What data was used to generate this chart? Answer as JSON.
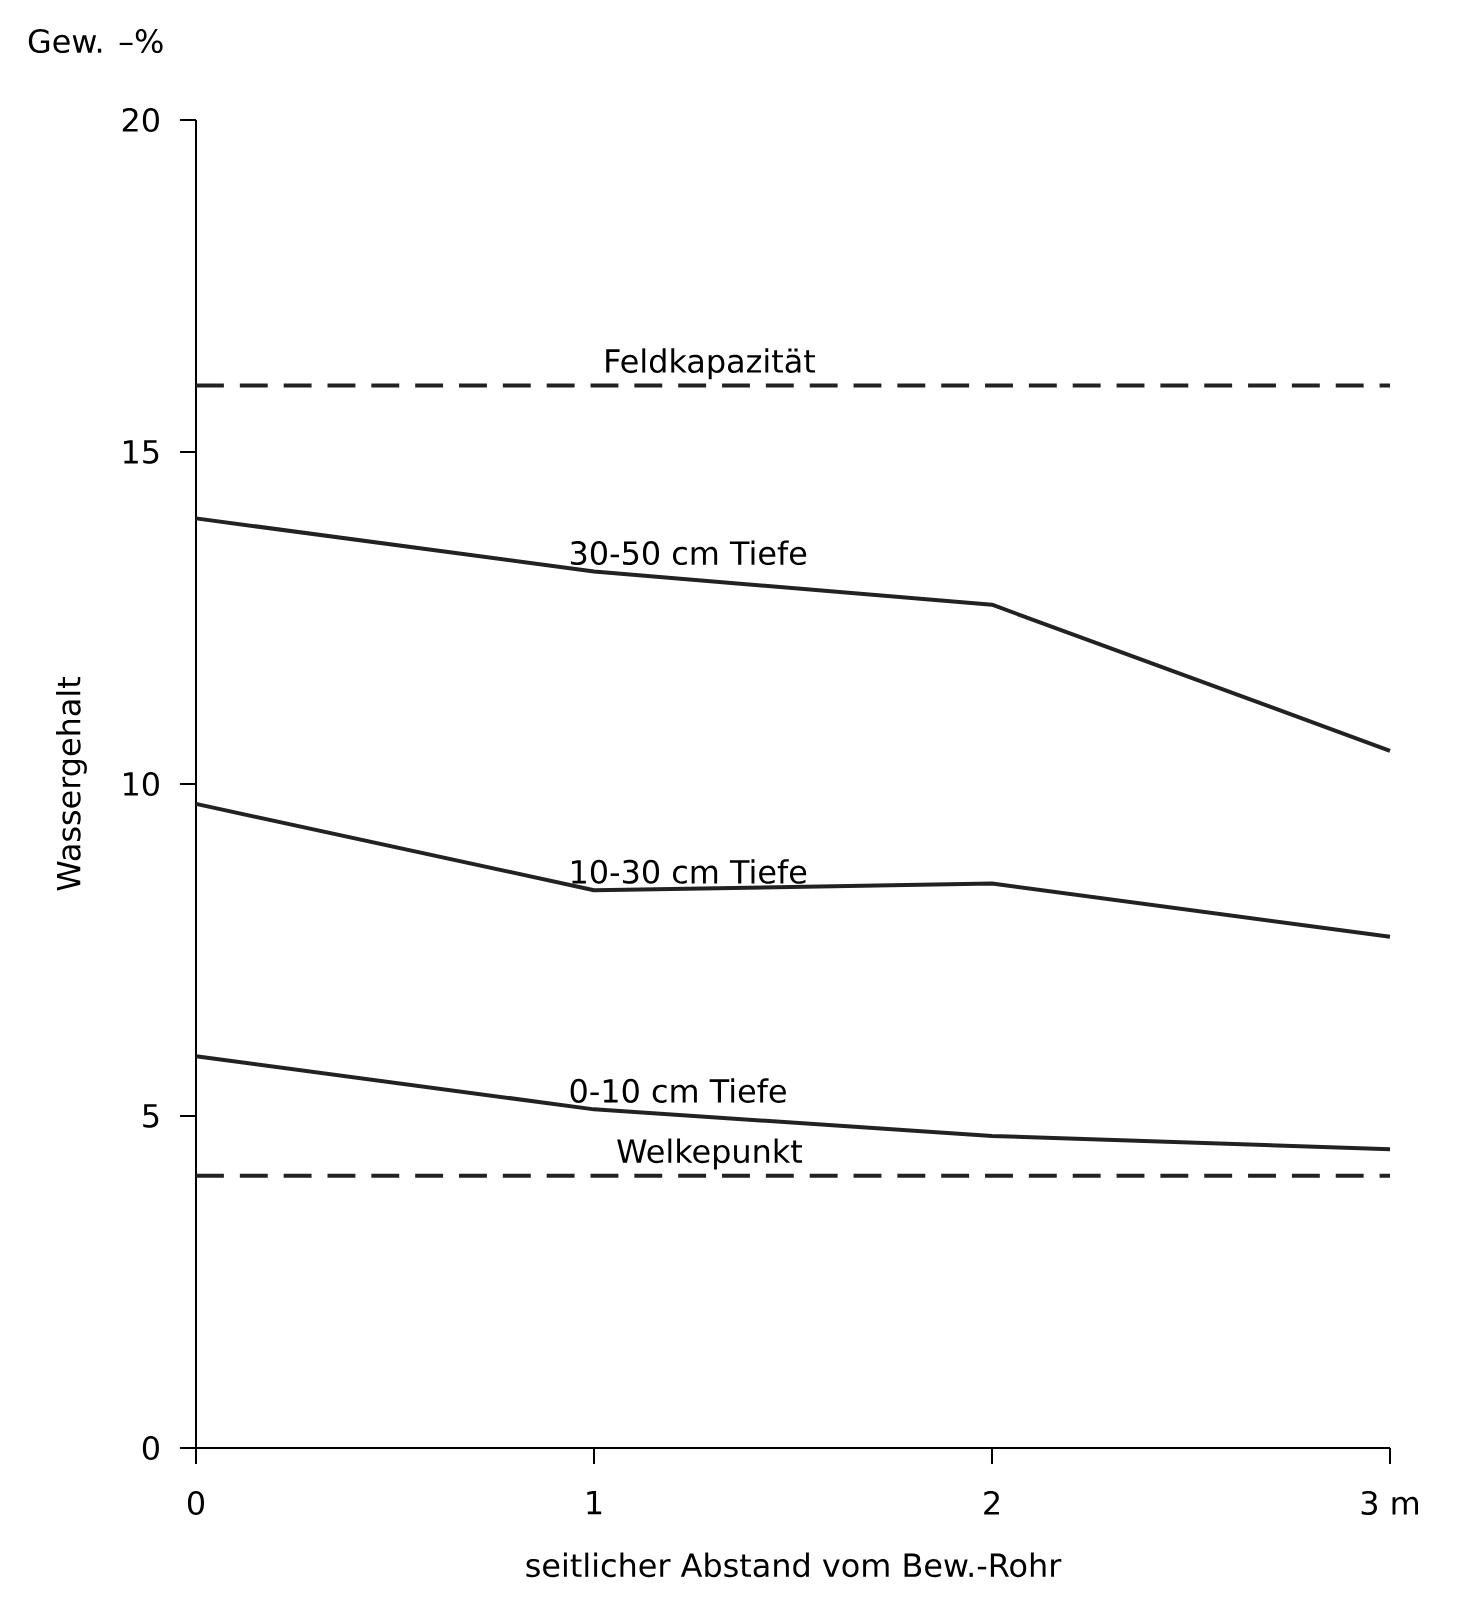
{
  "chart_data": {
    "type": "line",
    "xlabel": "seitlicher Abstand vom Bew.-Rohr",
    "ylabel": "Wassergehalt",
    "annotations": [
      "Gew. –%"
    ],
    "x": [
      0,
      1,
      2,
      3
    ],
    "series": [
      {
        "name": "30-50 cm Tiefe",
        "color": "#222222",
        "values": [
          14.0,
          13.2,
          12.7,
          10.5
        ]
      },
      {
        "name": "10-30 cm Tiefe",
        "color": "#222222",
        "values": [
          9.7,
          8.4,
          8.5,
          7.7
        ]
      },
      {
        "name": "0-10 cm Tiefe",
        "color": "#222222",
        "values": [
          5.9,
          5.1,
          4.7,
          4.5
        ]
      }
    ],
    "ref_lines": [
      {
        "axis": "y",
        "value": 16.0,
        "label": "Feldkapazität",
        "color": "#222222",
        "line_style": "dashed"
      },
      {
        "axis": "y",
        "value": 4.1,
        "label": "Welkepunkt",
        "color": "#222222",
        "line_style": "dashed"
      }
    ],
    "xlim": [
      0,
      3
    ],
    "ylim": [
      0,
      20
    ],
    "xticks": [
      0,
      1,
      2,
      {
        "value": 3,
        "label": "3 m"
      }
    ],
    "yticks": [
      0,
      5,
      10,
      15,
      20
    ],
    "marker": "none",
    "line_style": "solid"
  }
}
